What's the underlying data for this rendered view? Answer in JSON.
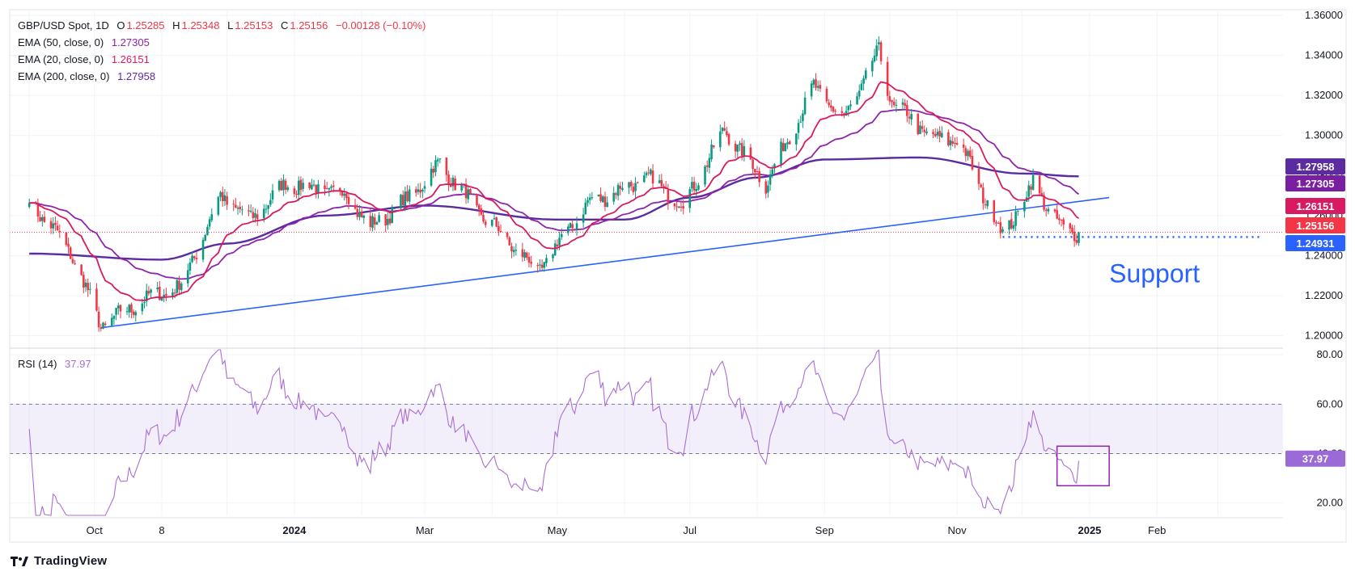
{
  "legend": {
    "symbol": "GBP/USD Spot, 1D",
    "ohlc": {
      "o_label": "O",
      "o": "1.25285",
      "h_label": "H",
      "h": "1.25348",
      "l_label": "L",
      "l": "1.25153",
      "c_label": "C",
      "c": "1.25156",
      "change": "−0.00128 (−0.10%)"
    },
    "ema50": {
      "label": "EMA (50, close, 0)",
      "value": "1.27305"
    },
    "ema20": {
      "label": "EMA (20, close, 0)",
      "value": "1.26151"
    },
    "ema200": {
      "label": "EMA (200, close, 0)",
      "value": "1.27958"
    },
    "rsi": {
      "label": "RSI (14)",
      "value": "37.97"
    }
  },
  "annotation": {
    "support_text": "Support"
  },
  "footer": {
    "brand": "TradingView",
    "logo_icon": "tradingview-logo-icon"
  },
  "colors": {
    "up": "#089981",
    "down": "#f23645",
    "ema20": "#d81b60",
    "ema50": "#8e24aa",
    "ema200": "#5b2ca0",
    "trendline": "#2962ff",
    "support": "#2962ff",
    "rsi": "#a96fd6"
  },
  "chart_data": [
    {
      "type": "candlestick",
      "x_tick_labels": [
        "Oct",
        "8",
        "2024",
        "Mar",
        "May",
        "Jul",
        "Sep",
        "Nov",
        "2025",
        "Feb"
      ],
      "y_ticks": [
        "1.36000",
        "1.34000",
        "1.32000",
        "1.30000",
        "1.28000",
        "1.26000",
        "1.24000",
        "1.22000",
        "1.20000"
      ],
      "ylim": [
        1.195,
        1.362
      ],
      "price_tags": [
        {
          "series": "EMA 200",
          "value": "1.27958"
        },
        {
          "series": "EMA 50",
          "value": "1.27305"
        },
        {
          "series": "EMA 20",
          "value": "1.26151"
        },
        {
          "series": "Close",
          "value": "1.25156"
        },
        {
          "series": "Support",
          "value": "1.24931"
        }
      ],
      "months": [
        "2023-09",
        "2023-10",
        "2023-11",
        "2023-12",
        "2024-01",
        "2024-02",
        "2024-03",
        "2024-04",
        "2024-05",
        "2024-06",
        "2024-07",
        "2024-08",
        "2024-09",
        "2024-10",
        "2024-11",
        "2024-12"
      ],
      "anchors": [
        {
          "date": "2023-09-01",
          "close": 1.268
        },
        {
          "date": "2023-09-20",
          "close": 1.242
        },
        {
          "date": "2023-10-04",
          "close": 1.205
        },
        {
          "date": "2023-10-24",
          "close": 1.218
        },
        {
          "date": "2023-11-10",
          "close": 1.225
        },
        {
          "date": "2023-11-28",
          "close": 1.27
        },
        {
          "date": "2023-12-12",
          "close": 1.258
        },
        {
          "date": "2023-12-28",
          "close": 1.276
        },
        {
          "date": "2024-01-25",
          "close": 1.271
        },
        {
          "date": "2024-02-05",
          "close": 1.254
        },
        {
          "date": "2024-02-22",
          "close": 1.268
        },
        {
          "date": "2024-03-08",
          "close": 1.286
        },
        {
          "date": "2024-03-25",
          "close": 1.263
        },
        {
          "date": "2024-04-22",
          "close": 1.232
        },
        {
          "date": "2024-05-15",
          "close": 1.266
        },
        {
          "date": "2024-06-12",
          "close": 1.279
        },
        {
          "date": "2024-06-28",
          "close": 1.265
        },
        {
          "date": "2024-07-17",
          "close": 1.303
        },
        {
          "date": "2024-08-05",
          "close": 1.276
        },
        {
          "date": "2024-08-27",
          "close": 1.324
        },
        {
          "date": "2024-09-10",
          "close": 1.308
        },
        {
          "date": "2024-09-26",
          "close": 1.342
        },
        {
          "date": "2024-10-02",
          "close": 1.316
        },
        {
          "date": "2024-10-23",
          "close": 1.297
        },
        {
          "date": "2024-11-01",
          "close": 1.299
        },
        {
          "date": "2024-11-22",
          "close": 1.25
        },
        {
          "date": "2024-12-06",
          "close": 1.276
        },
        {
          "date": "2024-12-20",
          "close": 1.252
        },
        {
          "date": "2024-12-27",
          "close": 1.2516
        }
      ],
      "ema200_path": [
        {
          "date": "2023-09-01",
          "value": 1.241
        },
        {
          "date": "2023-11-01",
          "value": 1.238
        },
        {
          "date": "2023-12-01",
          "value": 1.246
        },
        {
          "date": "2024-01-15",
          "value": 1.26
        },
        {
          "date": "2024-03-01",
          "value": 1.265
        },
        {
          "date": "2024-05-01",
          "value": 1.258
        },
        {
          "date": "2024-06-01",
          "value": 1.258
        },
        {
          "date": "2024-07-01",
          "value": 1.269
        },
        {
          "date": "2024-08-01",
          "value": 1.279
        },
        {
          "date": "2024-09-01",
          "value": 1.288
        },
        {
          "date": "2024-10-15",
          "value": 1.289
        },
        {
          "date": "2024-12-01",
          "value": 1.281
        },
        {
          "date": "2024-12-27",
          "value": 1.2796
        }
      ],
      "trendline": {
        "start": {
          "date": "2023-10-04",
          "value": 1.204
        },
        "end": {
          "date": "2025-01-10",
          "value": 1.269
        }
      },
      "support": {
        "value": 1.2493,
        "start": "2024-11-22",
        "end": "2025-03-20"
      },
      "end_date": "2025-03-31"
    },
    {
      "type": "line",
      "series_label": "RSI (14)",
      "y_ticks": [
        "80.00",
        "60.00",
        "40.00",
        "20.00"
      ],
      "ylim": [
        15,
        82
      ],
      "bands": {
        "upper": 60,
        "lower": 40
      },
      "last_value": "37.97",
      "highlight": {
        "start": "2024-12-17",
        "end": "2025-01-10",
        "low": 27,
        "high": 43
      }
    }
  ]
}
